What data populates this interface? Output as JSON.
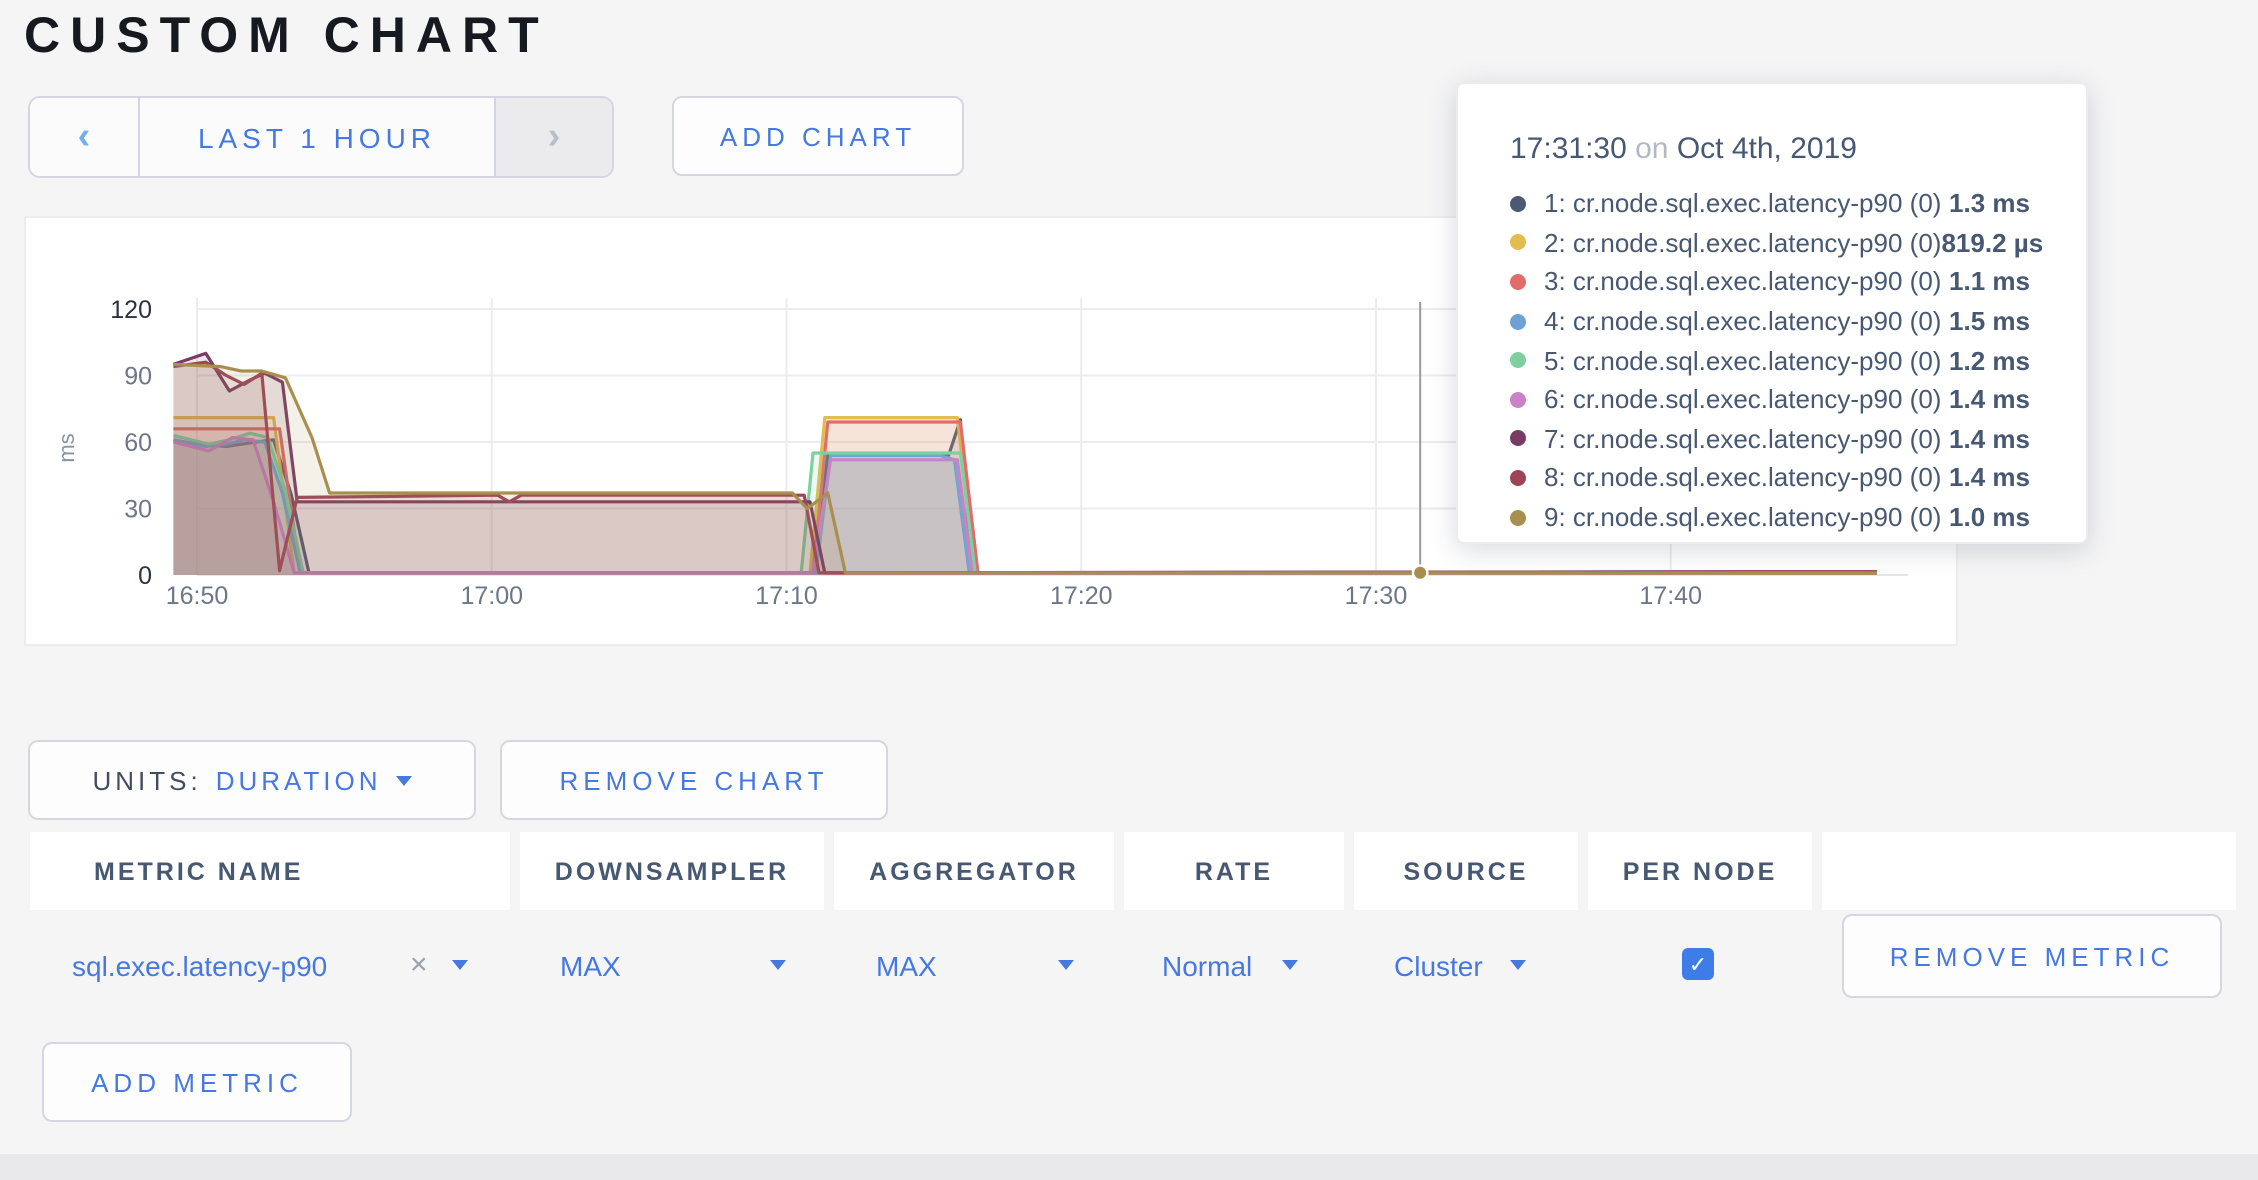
{
  "page": {
    "title": "CUSTOM CHART"
  },
  "toolbar": {
    "time_range": {
      "prev_label": "‹",
      "label": "LAST 1 HOUR",
      "next_label": "›"
    },
    "add_chart_label": "ADD CHART"
  },
  "tooltip": {
    "time": "17:31:30",
    "on_word": "on",
    "date": "Oct 4th, 2019",
    "series": [
      {
        "dot_color": "#4a5a75",
        "label": "1: cr.node.sql.exec.latency-p90 (0)",
        "value": "1.3 ms"
      },
      {
        "dot_color": "#e2bc4d",
        "label": "2: cr.node.sql.exec.latency-p90 (0)",
        "value": "819.2 µs"
      },
      {
        "dot_color": "#e06c6c",
        "label": "3: cr.node.sql.exec.latency-p90 (0)",
        "value": "1.1 ms"
      },
      {
        "dot_color": "#6fa1d4",
        "label": "4: cr.node.sql.exec.latency-p90 (0)",
        "value": "1.5 ms"
      },
      {
        "dot_color": "#7fd0a0",
        "label": "5: cr.node.sql.exec.latency-p90 (0)",
        "value": "1.2 ms"
      },
      {
        "dot_color": "#ca82c6",
        "label": "6: cr.node.sql.exec.latency-p90 (0)",
        "value": "1.4 ms"
      },
      {
        "dot_color": "#7a3b63",
        "label": "7: cr.node.sql.exec.latency-p90 (0)",
        "value": "1.4 ms"
      },
      {
        "dot_color": "#9e4459",
        "label": "8: cr.node.sql.exec.latency-p90 (0)",
        "value": "1.4 ms"
      },
      {
        "dot_color": "#a98f4f",
        "label": "9: cr.node.sql.exec.latency-p90 (0)",
        "value": "1.0 ms"
      }
    ]
  },
  "chart_data": {
    "type": "area",
    "title": "",
    "ylabel": "ms",
    "ylim": [
      0,
      120
    ],
    "y_ticks": [
      0,
      30,
      60,
      90,
      120
    ],
    "x_ticks": [
      {
        "label": "16:50",
        "t": 0
      },
      {
        "label": "17:00",
        "t": 10
      },
      {
        "label": "17:10",
        "t": 20
      },
      {
        "label": "17:20",
        "t": 30
      },
      {
        "label": "17:30",
        "t": 40
      },
      {
        "label": "17:40",
        "t": 50
      }
    ],
    "x_unit": "minutes after 16:50",
    "hover": {
      "time_label": "17:31:30",
      "t": 41.5,
      "dot_color": "#a98f4f",
      "dot_value_ms": 1.0
    },
    "series": [
      {
        "name": "1: cr.node.sql.exec.latency-p90 (0)",
        "color": "#4a5a75",
        "points": [
          [
            -0.8,
            61
          ],
          [
            0,
            59
          ],
          [
            1,
            58
          ],
          [
            2,
            60
          ],
          [
            2.6,
            61
          ],
          [
            3.2,
            36
          ],
          [
            3.8,
            1
          ],
          [
            20.9,
            1
          ],
          [
            21.4,
            54
          ],
          [
            25.5,
            54
          ],
          [
            25.9,
            70
          ],
          [
            26.3,
            1
          ],
          [
            57,
            1
          ]
        ]
      },
      {
        "name": "2: cr.node.sql.exec.latency-p90 (0)",
        "color": "#e2bc4d",
        "points": [
          [
            -0.8,
            71
          ],
          [
            2.6,
            71
          ],
          [
            3.3,
            1
          ],
          [
            20.8,
            1
          ],
          [
            21.3,
            71
          ],
          [
            25.8,
            71
          ],
          [
            26.4,
            1
          ],
          [
            57,
            0.8
          ]
        ]
      },
      {
        "name": "3: cr.node.sql.exec.latency-p90 (0)",
        "color": "#e06c6c",
        "points": [
          [
            -0.8,
            66
          ],
          [
            2.8,
            66
          ],
          [
            3.5,
            1
          ],
          [
            20.9,
            1
          ],
          [
            21.4,
            69
          ],
          [
            25.9,
            69
          ],
          [
            26.5,
            1
          ],
          [
            57,
            1.1
          ]
        ]
      },
      {
        "name": "4: cr.node.sql.exec.latency-p90 (0)",
        "color": "#6fa1d4",
        "points": [
          [
            -0.8,
            61
          ],
          [
            0.3,
            58
          ],
          [
            1,
            59
          ],
          [
            1.6,
            61
          ],
          [
            2.3,
            60
          ],
          [
            2.9,
            37
          ],
          [
            3.5,
            1
          ],
          [
            21,
            1
          ],
          [
            21.5,
            54
          ],
          [
            25.2,
            54
          ],
          [
            25.7,
            52
          ],
          [
            26.2,
            1
          ],
          [
            57,
            1.5
          ]
        ]
      },
      {
        "name": "5: cr.node.sql.exec.latency-p90 (0)",
        "color": "#7fd0a0",
        "points": [
          [
            -0.8,
            63
          ],
          [
            0.4,
            59
          ],
          [
            1.1,
            61
          ],
          [
            1.8,
            64
          ],
          [
            2.4,
            62
          ],
          [
            3,
            38
          ],
          [
            3.6,
            1
          ],
          [
            20.5,
            1
          ],
          [
            20.9,
            55
          ],
          [
            25.9,
            55
          ],
          [
            26.4,
            1
          ],
          [
            57,
            1.2
          ]
        ]
      },
      {
        "name": "6: cr.node.sql.exec.latency-p90 (0)",
        "color": "#ca82c6",
        "points": [
          [
            -0.8,
            60
          ],
          [
            0.4,
            56
          ],
          [
            1.2,
            62
          ],
          [
            1.9,
            61
          ],
          [
            2.6,
            33
          ],
          [
            3.3,
            1
          ],
          [
            20.9,
            1
          ],
          [
            21.5,
            52
          ],
          [
            25.8,
            52
          ],
          [
            26.3,
            1
          ],
          [
            57,
            1.4
          ]
        ]
      },
      {
        "name": "7: cr.node.sql.exec.latency-p90 (0)",
        "color": "#7a3b63",
        "points": [
          [
            -0.8,
            95
          ],
          [
            0.3,
            100
          ],
          [
            1.1,
            83
          ],
          [
            1.8,
            88
          ],
          [
            2.3,
            91
          ],
          [
            2.9,
            87
          ],
          [
            3.4,
            33
          ],
          [
            20.8,
            33
          ],
          [
            21.3,
            1
          ],
          [
            57,
            1.4
          ]
        ]
      },
      {
        "name": "8: cr.node.sql.exec.latency-p90 (0)",
        "color": "#9e4459",
        "points": [
          [
            -0.8,
            94
          ],
          [
            0.3,
            96
          ],
          [
            1,
            90
          ],
          [
            1.6,
            86
          ],
          [
            2.2,
            91
          ],
          [
            2.8,
            2
          ],
          [
            3.4,
            35
          ],
          [
            10.2,
            36
          ],
          [
            10.6,
            33
          ],
          [
            11,
            36
          ],
          [
            20.6,
            36
          ],
          [
            21.1,
            1
          ],
          [
            57,
            1.4
          ]
        ]
      },
      {
        "name": "9: cr.node.sql.exec.latency-p90 (0)",
        "color": "#a98f4f",
        "points": [
          [
            -0.8,
            95
          ],
          [
            0.8,
            94
          ],
          [
            1.5,
            92
          ],
          [
            2.2,
            92
          ],
          [
            3,
            89
          ],
          [
            3.9,
            62
          ],
          [
            4.5,
            37
          ],
          [
            20.2,
            37
          ],
          [
            20.7,
            30
          ],
          [
            21.4,
            37
          ],
          [
            22,
            1
          ],
          [
            41.5,
            1
          ],
          [
            57,
            1
          ]
        ]
      }
    ],
    "legend_position": "tooltip",
    "grid": true
  },
  "chart_controls": {
    "units_label": "UNITS:",
    "units_value": "DURATION",
    "remove_chart_label": "REMOVE CHART"
  },
  "metrics_table": {
    "headers": [
      "METRIC NAME",
      "DOWNSAMPLER",
      "AGGREGATOR",
      "RATE",
      "SOURCE",
      "PER NODE",
      ""
    ],
    "rows": [
      {
        "metric_name": "sql.exec.latency-p90",
        "clear_label": "×",
        "downsampler": "MAX",
        "aggregator": "MAX",
        "rate": "Normal",
        "source": "Cluster",
        "per_node_checked": true,
        "checkmark": "✓",
        "remove_label": "REMOVE METRIC"
      }
    ],
    "add_metric_label": "ADD METRIC"
  }
}
